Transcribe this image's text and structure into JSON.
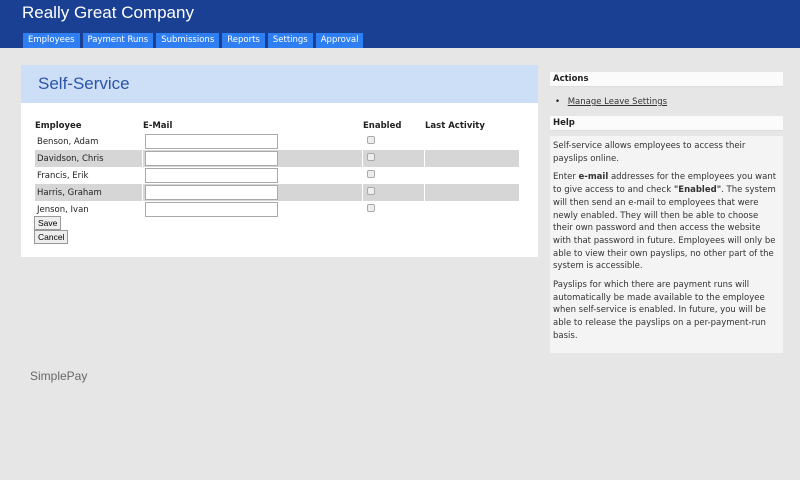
{
  "header": {
    "title": "Really Great Company",
    "tabs": [
      "Employees",
      "Payment Runs",
      "Submissions",
      "Reports",
      "Settings",
      "Approval"
    ]
  },
  "main": {
    "title": "Self-Service",
    "columns": [
      "Employee",
      "E-Mail",
      "Enabled",
      "Last Activity"
    ],
    "rows": [
      {
        "name": "Benson, Adam",
        "email": "",
        "enabled": false,
        "last": ""
      },
      {
        "name": "Davidson, Chris",
        "email": "",
        "enabled": false,
        "last": ""
      },
      {
        "name": "Francis, Erik",
        "email": "",
        "enabled": false,
        "last": ""
      },
      {
        "name": "Harris, Graham",
        "email": "",
        "enabled": false,
        "last": ""
      },
      {
        "name": "Jenson, Ivan",
        "email": "",
        "enabled": false,
        "last": ""
      }
    ],
    "save": "Save",
    "cancel": "Cancel"
  },
  "sidebar": {
    "actions_title": "Actions",
    "actions": [
      "Manage Leave Settings"
    ],
    "help_title": "Help",
    "help": {
      "p1": "Self-service allows employees to access their payslips online.",
      "p2a": "Enter ",
      "p2b": "e-mail",
      "p2c": " addresses for the employees you want to give access to and check ",
      "p2d": "\"Enabled\"",
      "p2e": ". The system will then send an e-mail to employees that were newly enabled. They will then be able to choose their own password and then access the website with that password in future. Employees will only be able to view their own payslips, no other part of the system is accessible.",
      "p3": "Payslips for which there are payment runs will automatically be made available to the employee when self-service is enabled. In future, you will be able to release the payslips on a per-payment-run basis."
    }
  },
  "footer": {
    "logo": "SimplePay"
  }
}
